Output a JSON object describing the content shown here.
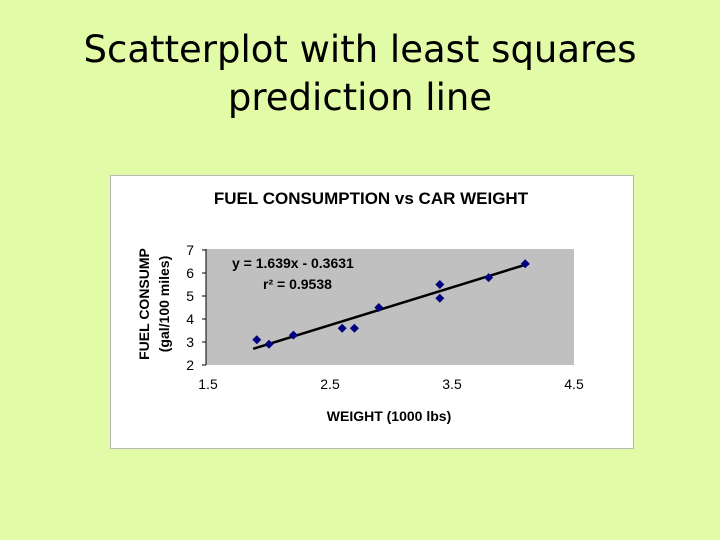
{
  "slide": {
    "title_line1": "Scatterplot with least squares",
    "title_line2": "prediction line"
  },
  "chart_data": {
    "type": "scatter",
    "title": "FUEL CONSUMPTION vs CAR WEIGHT",
    "xlabel": "WEIGHT (1000 lbs)",
    "ylabel_line1": "FUEL CONSUMP",
    "ylabel_line2": "(gal/100 miles)",
    "xlim": [
      1.5,
      4.5
    ],
    "ylim": [
      2,
      7
    ],
    "x_ticks": [
      1.5,
      2.5,
      3.5,
      4.5
    ],
    "x_tick_labels": [
      "1.5",
      "2.5",
      "3.5",
      "4.5"
    ],
    "y_ticks": [
      2,
      3,
      4,
      5,
      6,
      7
    ],
    "y_tick_labels": [
      "2",
      "3",
      "4",
      "5",
      "6",
      "7"
    ],
    "points": [
      {
        "x": 1.9,
        "y": 3.1
      },
      {
        "x": 2.0,
        "y": 2.9
      },
      {
        "x": 2.2,
        "y": 3.3
      },
      {
        "x": 2.6,
        "y": 3.6
      },
      {
        "x": 2.7,
        "y": 3.6
      },
      {
        "x": 2.9,
        "y": 4.5
      },
      {
        "x": 3.4,
        "y": 5.5
      },
      {
        "x": 3.4,
        "y": 4.9
      },
      {
        "x": 3.8,
        "y": 5.8
      },
      {
        "x": 4.1,
        "y": 6.4
      }
    ],
    "trendline": {
      "slope": 1.639,
      "intercept": -0.3631,
      "equation_label": "y = 1.639x - 0.3631",
      "r2_label": "r² = 0.9538"
    },
    "grid": false,
    "legend": "none",
    "colors": {
      "plot_area": "#c0c0c0",
      "marker": "#000080",
      "trendline": "#000000"
    }
  }
}
